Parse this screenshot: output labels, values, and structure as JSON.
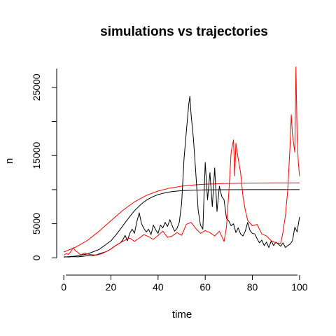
{
  "chart_data": {
    "type": "line",
    "title": "simulations vs trajectories",
    "xlabel": "time",
    "ylabel": "n",
    "xlim": [
      -3,
      103
    ],
    "ylim": [
      -1200,
      29500
    ],
    "x_ticks": [
      0,
      20,
      40,
      60,
      80,
      100
    ],
    "y_ticks": [
      0,
      5000,
      15000,
      25000
    ],
    "grid": false,
    "legend": "none",
    "series": [
      {
        "color": "#000000",
        "style": "smooth",
        "kind": "deterministic",
        "x": [
          0,
          5,
          10,
          15,
          20,
          22,
          24,
          26,
          28,
          30,
          32,
          34,
          36,
          38,
          40,
          42,
          44,
          46,
          48,
          50,
          55,
          60,
          70,
          80,
          90,
          100
        ],
        "y": [
          100,
          250,
          560,
          1220,
          2500,
          3300,
          4200,
          5150,
          6050,
          6900,
          7600,
          8200,
          8650,
          9000,
          9270,
          9460,
          9610,
          9720,
          9790,
          9850,
          9930,
          9970,
          9990,
          10000,
          10000,
          10000
        ]
      },
      {
        "color": "#ff0000",
        "style": "smooth",
        "kind": "deterministic",
        "x": [
          0,
          5,
          10,
          15,
          20,
          25,
          30,
          35,
          40,
          45,
          50,
          55,
          60,
          70,
          80,
          90,
          100
        ],
        "y": [
          850,
          1550,
          2550,
          3900,
          5450,
          6950,
          8200,
          9150,
          9800,
          10230,
          10500,
          10680,
          10800,
          10920,
          10970,
          10990,
          11000
        ]
      },
      {
        "color": "#000000",
        "style": "trajectory",
        "kind": "stochastic",
        "x": [
          0,
          2,
          4,
          6,
          8,
          10,
          12,
          14,
          16,
          18,
          20,
          22,
          24,
          25,
          26,
          27,
          28,
          29,
          30,
          31,
          32,
          33,
          34,
          35,
          36,
          37,
          38,
          39,
          40,
          41,
          42,
          43,
          44,
          45,
          46,
          47,
          48,
          49,
          50,
          51,
          52,
          53,
          53.5,
          54,
          55,
          56,
          57,
          58,
          59,
          60,
          61,
          62,
          63,
          64,
          65,
          66,
          67,
          68,
          69,
          70,
          71,
          72,
          73,
          74,
          75,
          76,
          77,
          78,
          79,
          80,
          81,
          82,
          83,
          84,
          85,
          86,
          87,
          88,
          89,
          90,
          91,
          92,
          93,
          94,
          95,
          96,
          97,
          98,
          99,
          100
        ],
        "y": [
          150,
          120,
          180,
          150,
          220,
          320,
          280,
          450,
          700,
          900,
          1300,
          1800,
          2200,
          2600,
          3300,
          2500,
          3600,
          4200,
          3600,
          5300,
          6600,
          5000,
          4300,
          3800,
          4200,
          3400,
          4800,
          4100,
          3600,
          4800,
          4400,
          5200,
          4600,
          5600,
          4700,
          3900,
          4300,
          5200,
          8000,
          14500,
          18500,
          22500,
          23700,
          21000,
          17500,
          12500,
          7000,
          4800,
          4200,
          14000,
          8500,
          12500,
          7500,
          13200,
          6800,
          10500,
          9000,
          8500,
          5800,
          5400,
          4700,
          5000,
          3700,
          4400,
          3500,
          3200,
          3900,
          5200,
          4000,
          3600,
          3500,
          2800,
          2200,
          2600,
          1800,
          2300,
          1500,
          2500,
          1800,
          2300,
          2000,
          1700,
          2200,
          1500,
          1800,
          2000,
          2500,
          4500,
          3800,
          6000
        ]
      },
      {
        "color": "#ff0000",
        "style": "trajectory",
        "kind": "stochastic",
        "x": [
          0,
          1,
          2,
          3,
          4,
          5,
          6,
          7,
          8,
          9,
          10,
          12,
          14,
          16,
          18,
          20,
          22,
          24,
          26,
          28,
          30,
          32,
          34,
          36,
          38,
          40,
          42,
          44,
          46,
          48,
          50,
          52,
          54,
          56,
          58,
          60,
          62,
          64,
          66,
          68,
          69,
          70,
          71,
          72,
          72.5,
          73,
          74,
          75,
          76,
          77,
          78,
          80,
          82,
          84,
          86,
          88,
          90,
          92,
          93,
          94,
          95,
          96,
          96.5,
          97,
          98,
          98.5,
          99,
          99.5,
          100
        ],
        "y": [
          400,
          600,
          500,
          900,
          1500,
          1000,
          800,
          450,
          550,
          700,
          550,
          450,
          400,
          600,
          900,
          1300,
          1800,
          2200,
          2600,
          2900,
          2400,
          2900,
          3400,
          3100,
          2700,
          3300,
          3900,
          3000,
          3200,
          3700,
          3300,
          4900,
          5200,
          4300,
          3600,
          4000,
          3700,
          3200,
          3900,
          2400,
          4500,
          9600,
          15500,
          17300,
          12000,
          16800,
          14500,
          12500,
          9000,
          7000,
          5500,
          4700,
          4900,
          3500,
          3200,
          2500,
          2200,
          2100,
          3800,
          6200,
          10000,
          16500,
          21000,
          18000,
          15500,
          28000,
          17500,
          14000,
          12000
        ]
      }
    ]
  }
}
